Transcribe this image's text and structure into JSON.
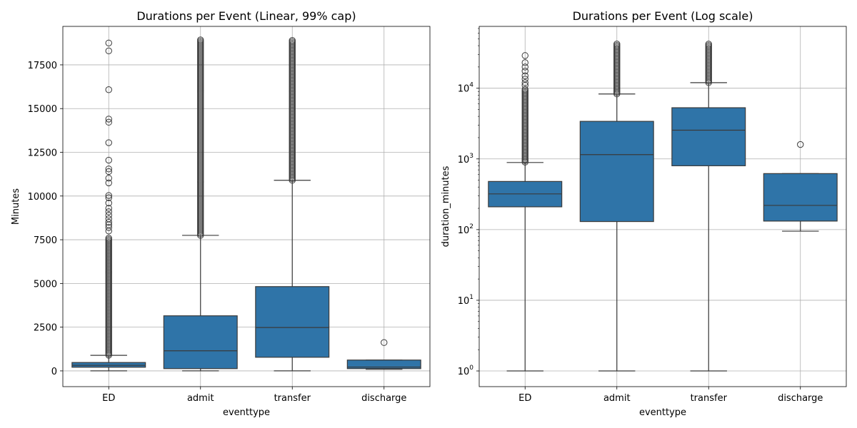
{
  "chart_data": [
    {
      "type": "box",
      "title": "Durations per Event (Linear, 99% cap)",
      "xlabel": "eventtype",
      "ylabel": "Minutes",
      "scale": "linear",
      "categories": [
        "ED",
        "admit",
        "transfer",
        "discharge"
      ],
      "ylim": [
        -900,
        19700
      ],
      "yticks": [
        0,
        2500,
        5000,
        7500,
        10000,
        12500,
        15000,
        17500
      ],
      "ytick_labels": [
        "0",
        "2500",
        "5000",
        "7500",
        "10000",
        "12500",
        "15000",
        "17500"
      ],
      "grid": true,
      "box_color": "#2f74a8",
      "boxes": [
        {
          "category": "ED",
          "whislo": 1,
          "q1": 210,
          "med": 320,
          "q3": 480,
          "whishi": 890,
          "fliers": [
            18750,
            18300,
            16080,
            14400,
            14220,
            13050,
            12050,
            11550,
            11400,
            11020,
            10750,
            10030,
            9900,
            9600,
            9300,
            9100,
            8900,
            8700,
            8500,
            8350,
            8200,
            8000
          ],
          "flier_band": [
            900,
            7600
          ]
        },
        {
          "category": "admit",
          "whislo": 1,
          "q1": 130,
          "med": 1150,
          "q3": 3150,
          "whishi": 7750,
          "fliers": [],
          "flier_band": [
            7750,
            18950
          ]
        },
        {
          "category": "transfer",
          "whislo": 1,
          "q1": 780,
          "med": 2480,
          "q3": 4820,
          "whishi": 10900,
          "fliers": [],
          "flier_band": [
            10900,
            18950
          ]
        },
        {
          "category": "discharge",
          "whislo": 95,
          "q1": 130,
          "med": 220,
          "q3": 620,
          "whishi": 620,
          "fliers": [
            1620
          ],
          "flier_band": null
        }
      ]
    },
    {
      "type": "box",
      "title": "Durations per Event (Log scale)",
      "xlabel": "eventtype",
      "ylabel": "duration_minutes",
      "scale": "log",
      "categories": [
        "ED",
        "admit",
        "transfer",
        "discharge"
      ],
      "ylim": [
        0.6,
        75000
      ],
      "yticks": [
        1,
        10,
        100,
        1000,
        10000
      ],
      "ytick_bases": [
        "10",
        "10",
        "10",
        "10",
        "10"
      ],
      "ytick_exps": [
        "0",
        "1",
        "2",
        "3",
        "4"
      ],
      "grid": true,
      "box_color": "#2f74a8",
      "boxes": [
        {
          "category": "ED",
          "whislo": 1,
          "q1": 210,
          "med": 320,
          "q3": 480,
          "whishi": 890,
          "fliers": [
            29000,
            23000,
            20000,
            17500,
            15000,
            13500,
            12000,
            11000
          ],
          "flier_band": [
            900,
            10000
          ]
        },
        {
          "category": "admit",
          "whislo": 1,
          "q1": 130,
          "med": 1150,
          "q3": 3400,
          "whishi": 8300,
          "fliers": [],
          "flier_band": [
            8300,
            43000
          ]
        },
        {
          "category": "transfer",
          "whislo": 1,
          "q1": 800,
          "med": 2550,
          "q3": 5300,
          "whishi": 12000,
          "fliers": [],
          "flier_band": [
            12000,
            43000
          ]
        },
        {
          "category": "discharge",
          "whislo": 95,
          "q1": 132,
          "med": 220,
          "q3": 620,
          "whishi": 620,
          "fliers": [
            1600
          ],
          "flier_band": null
        }
      ]
    }
  ]
}
